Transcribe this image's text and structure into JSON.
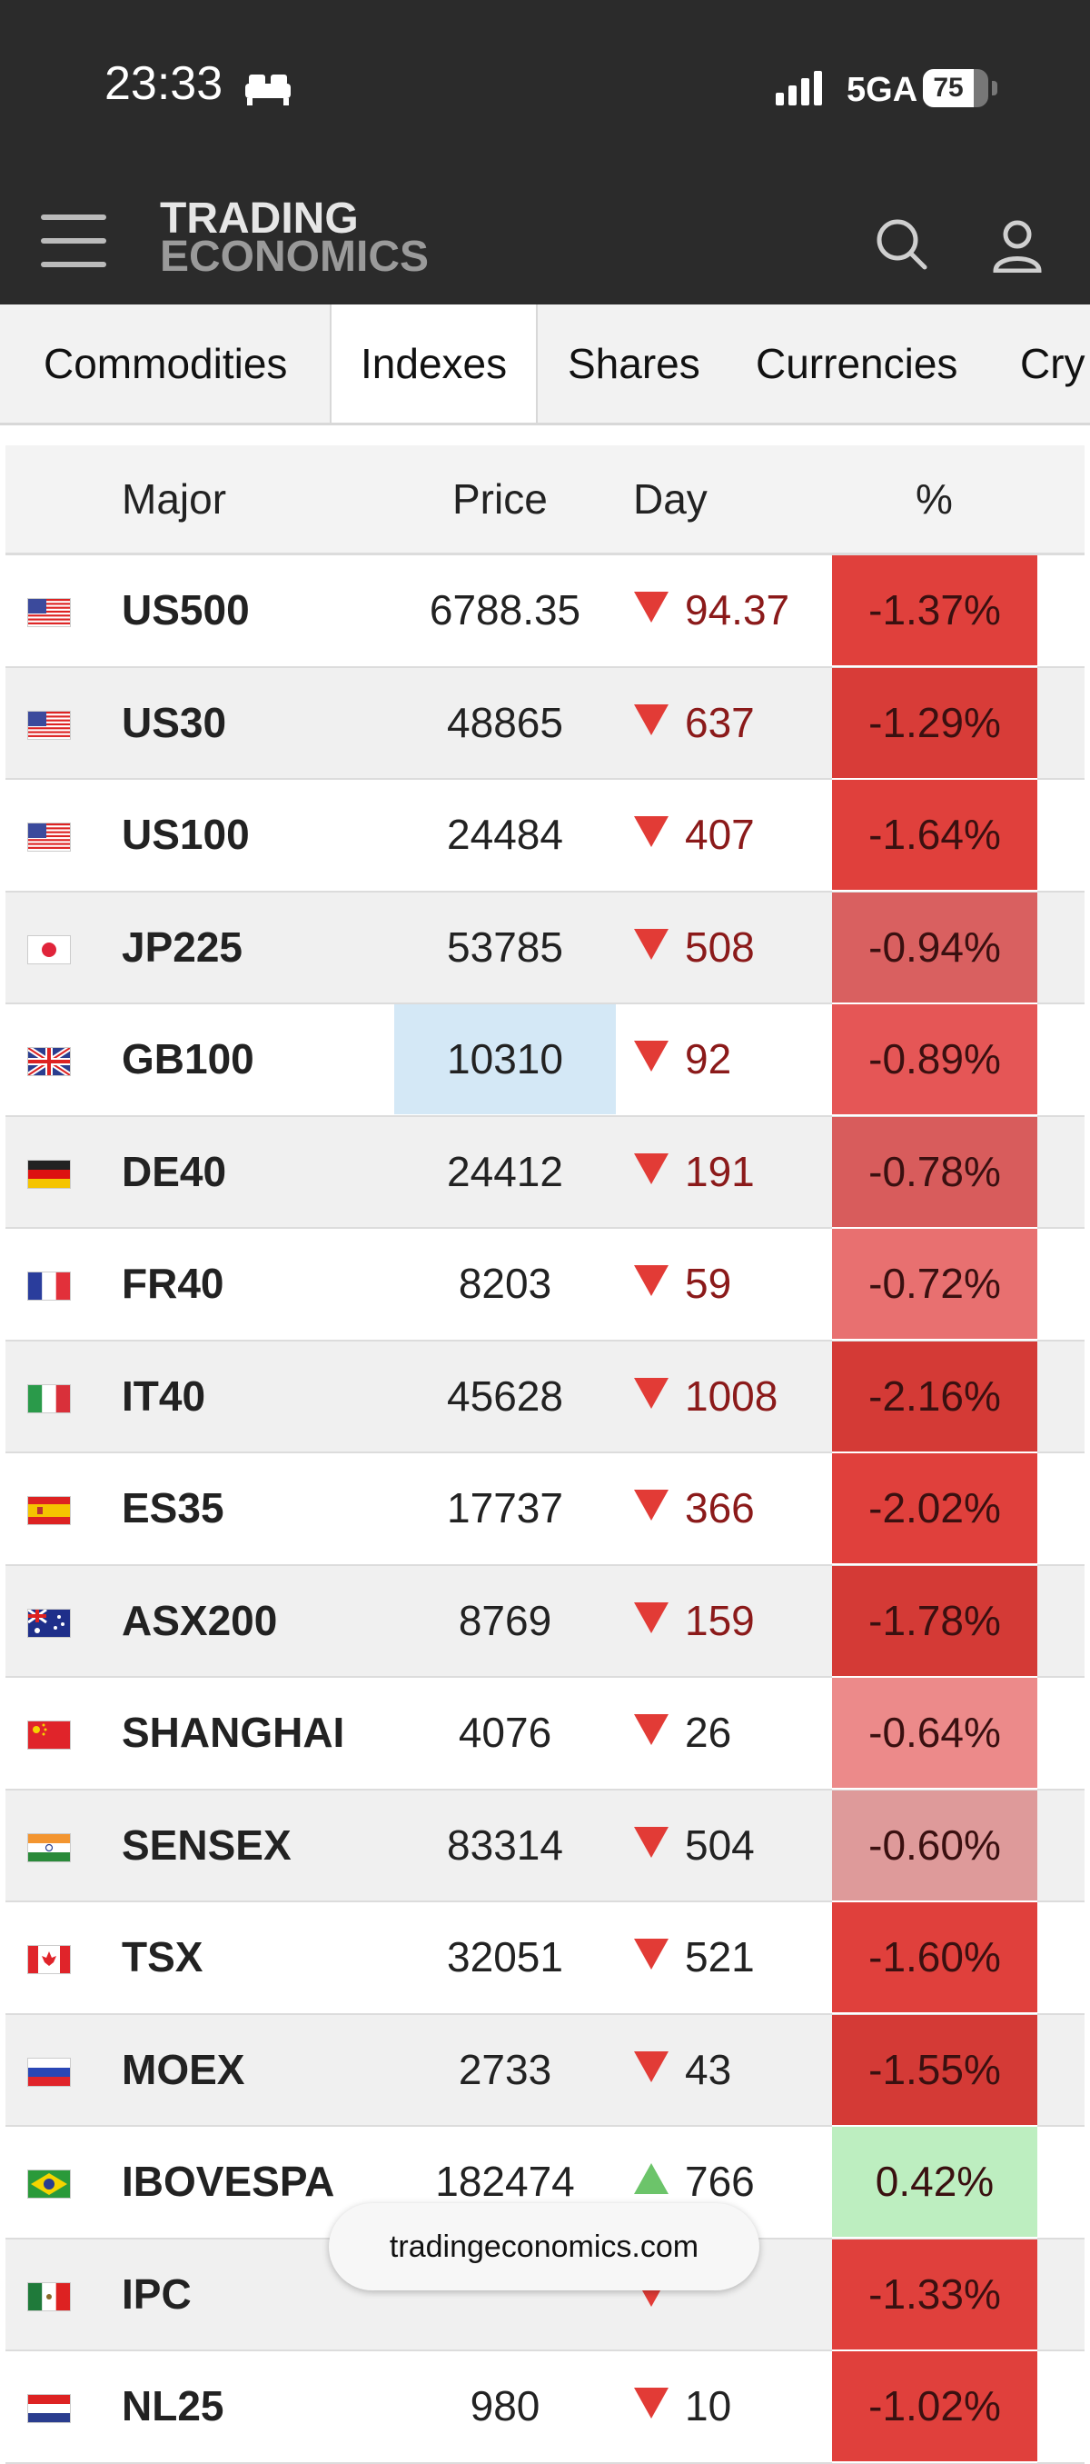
{
  "status_bar": {
    "time": "23:33",
    "network": "5GA",
    "battery": "75"
  },
  "header": {
    "logo_line1": "TRADING",
    "logo_line2": "ECONOMICS"
  },
  "tabs": [
    {
      "label": "Commodities",
      "active": false
    },
    {
      "label": "Indexes",
      "active": true
    },
    {
      "label": "Shares",
      "active": false
    },
    {
      "label": "Currencies",
      "active": false
    },
    {
      "label": "Cry",
      "active": false
    }
  ],
  "table": {
    "headers": {
      "major": "Major",
      "price": "Price",
      "day": "Day",
      "pct": "%"
    },
    "rows": [
      {
        "flag": "us",
        "symbol": "US500",
        "price": "6788.35",
        "direction": "down",
        "day": "94.37",
        "pct": "-1.37%",
        "pct_color": "#e0403c"
      },
      {
        "flag": "us",
        "symbol": "US30",
        "price": "48865",
        "direction": "down",
        "day": "637",
        "pct": "-1.29%",
        "pct_color": "#d83c38"
      },
      {
        "flag": "us",
        "symbol": "US100",
        "price": "24484",
        "direction": "down",
        "day": "407",
        "pct": "-1.64%",
        "pct_color": "#e0403c"
      },
      {
        "flag": "jp",
        "symbol": "JP225",
        "price": "53785",
        "direction": "down",
        "day": "508",
        "pct": "-0.94%",
        "pct_color": "#d96060"
      },
      {
        "flag": "gb",
        "symbol": "GB100",
        "price": "10310",
        "direction": "down",
        "day": "92",
        "pct": "-0.89%",
        "pct_color": "#e55656"
      },
      {
        "flag": "de",
        "symbol": "DE40",
        "price": "24412",
        "direction": "down",
        "day": "191",
        "pct": "-0.78%",
        "pct_color": "#d85c5c"
      },
      {
        "flag": "fr",
        "symbol": "FR40",
        "price": "8203",
        "direction": "down",
        "day": "59",
        "pct": "-0.72%",
        "pct_color": "#e87070"
      },
      {
        "flag": "it",
        "symbol": "IT40",
        "price": "45628",
        "direction": "down",
        "day": "1008",
        "pct": "-2.16%",
        "pct_color": "#d43a36"
      },
      {
        "flag": "es",
        "symbol": "ES35",
        "price": "17737",
        "direction": "down",
        "day": "366",
        "pct": "-2.02%",
        "pct_color": "#e0403c"
      },
      {
        "flag": "au",
        "symbol": "ASX200",
        "price": "8769",
        "direction": "down",
        "day": "159",
        "pct": "-1.78%",
        "pct_color": "#d43a36"
      },
      {
        "flag": "cn",
        "symbol": "SHANGHAI",
        "price": "4076",
        "direction": "down",
        "day": "26",
        "pct": "-0.64%",
        "pct_color": "#ec8a8a"
      },
      {
        "flag": "in",
        "symbol": "SENSEX",
        "price": "83314",
        "direction": "down",
        "day": "504",
        "pct": "-0.60%",
        "pct_color": "#de9a9a"
      },
      {
        "flag": "ca",
        "symbol": "TSX",
        "price": "32051",
        "direction": "down",
        "day": "521",
        "pct": "-1.60%",
        "pct_color": "#e0403c"
      },
      {
        "flag": "ru",
        "symbol": "MOEX",
        "price": "2733",
        "direction": "down",
        "day": "43",
        "pct": "-1.55%",
        "pct_color": "#d43a36"
      },
      {
        "flag": "br",
        "symbol": "IBOVESPA",
        "price": "182474",
        "direction": "up",
        "day": "766",
        "pct": "0.42%",
        "pct_color": "#bdeec0"
      },
      {
        "flag": "mx",
        "symbol": "IPC",
        "price": "",
        "direction": "down",
        "day": "",
        "pct": "-1.33%",
        "pct_color": "#e0403c"
      },
      {
        "flag": "nl",
        "symbol": "NL25",
        "price": "980",
        "direction": "down",
        "day": "10",
        "pct": "-1.02%",
        "pct_color": "#e0403c"
      }
    ]
  },
  "overlay": {
    "domain": "tradingeconomics.com"
  },
  "colors": {
    "down_arrow": "#e23b36",
    "up_arrow": "#6cc46a",
    "header_bg": "#2b2b2b",
    "price_highlight": "#d4e8f6"
  }
}
